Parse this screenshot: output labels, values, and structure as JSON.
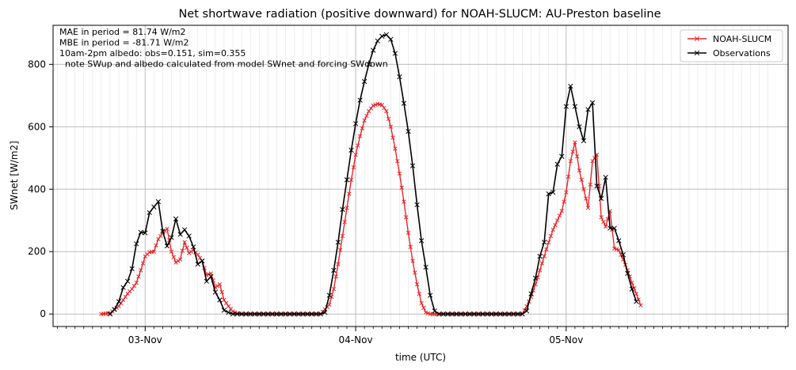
{
  "chart_data": {
    "type": "line",
    "title": "Net shortwave radiation (positive downward) for NOAH-SLUCM: AU-Preston baseline",
    "xlabel": "time (UTC)",
    "ylabel": "SWnet [W/m2]",
    "x_unit": "hours since 03-Nov 00:00 UTC",
    "xlim": [
      -10.5,
      73.3
    ],
    "ylim": [
      -40,
      925
    ],
    "yticks": [
      0,
      200,
      400,
      600,
      800
    ],
    "xtick_labels": [
      {
        "label": "03-Nov",
        "hour": 0
      },
      {
        "label": "04-Nov",
        "hour": 24
      },
      {
        "label": "05-Nov",
        "hour": 48
      }
    ],
    "grid": true,
    "legend_position": "top-right",
    "annotations": [
      "MAE in period = 81.74 W/m2",
      "MBE in period = -81.71 W/m2",
      "10am-2pm albedo: obs=0.151, sim=0.355",
      "  note SWup and albedo calculated from model SWnet and forcing SWdown"
    ],
    "series": [
      {
        "name": "NOAH-SLUCM",
        "color": "#e8262a",
        "marker": "x",
        "step_hours": 0.25,
        "points": [
          [
            -5.0,
            0
          ],
          [
            -4.0,
            3
          ],
          [
            -3.0,
            25
          ],
          [
            -2.5,
            45
          ],
          [
            -2.0,
            65
          ],
          [
            -1.5,
            80
          ],
          [
            -1.0,
            100
          ],
          [
            -0.5,
            140
          ],
          [
            0.0,
            185
          ],
          [
            0.5,
            198
          ],
          [
            1.0,
            200
          ],
          [
            1.5,
            240
          ],
          [
            2.0,
            260
          ],
          [
            2.5,
            273
          ],
          [
            3.0,
            200
          ],
          [
            3.5,
            165
          ],
          [
            4.0,
            175
          ],
          [
            4.5,
            230
          ],
          [
            5.0,
            195
          ],
          [
            5.5,
            205
          ],
          [
            6.0,
            190
          ],
          [
            6.5,
            170
          ],
          [
            7.0,
            125
          ],
          [
            7.5,
            130
          ],
          [
            8.0,
            85
          ],
          [
            8.5,
            95
          ],
          [
            9.0,
            45
          ],
          [
            9.5,
            25
          ],
          [
            10.0,
            8
          ],
          [
            10.5,
            2
          ],
          [
            11.0,
            0
          ],
          [
            20.0,
            0
          ],
          [
            21.0,
            30
          ],
          [
            21.5,
            80
          ],
          [
            22.0,
            160
          ],
          [
            22.5,
            250
          ],
          [
            23.0,
            340
          ],
          [
            23.5,
            430
          ],
          [
            24.0,
            510
          ],
          [
            24.5,
            570
          ],
          [
            25.0,
            620
          ],
          [
            25.5,
            650
          ],
          [
            26.0,
            668
          ],
          [
            26.5,
            673
          ],
          [
            27.0,
            670
          ],
          [
            27.5,
            650
          ],
          [
            28.0,
            600
          ],
          [
            28.5,
            530
          ],
          [
            29.0,
            450
          ],
          [
            29.5,
            360
          ],
          [
            30.0,
            260
          ],
          [
            30.5,
            170
          ],
          [
            31.0,
            95
          ],
          [
            31.5,
            35
          ],
          [
            32.0,
            5
          ],
          [
            32.5,
            0
          ],
          [
            43.0,
            0
          ],
          [
            43.5,
            25
          ],
          [
            44.0,
            55
          ],
          [
            44.5,
            95
          ],
          [
            45.0,
            140
          ],
          [
            45.5,
            185
          ],
          [
            46.0,
            230
          ],
          [
            46.5,
            270
          ],
          [
            47.0,
            300
          ],
          [
            47.5,
            330
          ],
          [
            48.0,
            390
          ],
          [
            48.5,
            490
          ],
          [
            49.0,
            550
          ],
          [
            49.5,
            460
          ],
          [
            50.0,
            400
          ],
          [
            50.5,
            340
          ],
          [
            51.0,
            490
          ],
          [
            51.5,
            510
          ],
          [
            52.0,
            310
          ],
          [
            52.5,
            280
          ],
          [
            53.0,
            330
          ],
          [
            53.5,
            210
          ],
          [
            54.0,
            205
          ],
          [
            54.5,
            175
          ],
          [
            55.0,
            140
          ],
          [
            55.5,
            100
          ],
          [
            56.0,
            65
          ],
          [
            56.5,
            28
          ]
        ]
      },
      {
        "name": "Observations",
        "color": "#000000",
        "marker": "x",
        "step_hours": 0.5,
        "points": [
          [
            -4.0,
            0
          ],
          [
            -3.5,
            15
          ],
          [
            -3.0,
            40
          ],
          [
            -2.5,
            85
          ],
          [
            -2.0,
            105
          ],
          [
            -1.5,
            145
          ],
          [
            -1.0,
            225
          ],
          [
            -0.5,
            262
          ],
          [
            0.0,
            260
          ],
          [
            0.5,
            325
          ],
          [
            1.0,
            343
          ],
          [
            1.5,
            360
          ],
          [
            2.0,
            265
          ],
          [
            2.5,
            218
          ],
          [
            3.0,
            245
          ],
          [
            3.5,
            305
          ],
          [
            4.0,
            255
          ],
          [
            4.5,
            270
          ],
          [
            5.0,
            250
          ],
          [
            5.5,
            215
          ],
          [
            6.0,
            160
          ],
          [
            6.5,
            170
          ],
          [
            7.0,
            105
          ],
          [
            7.5,
            120
          ],
          [
            8.0,
            70
          ],
          [
            8.5,
            45
          ],
          [
            9.0,
            12
          ],
          [
            9.5,
            5
          ],
          [
            10.0,
            0
          ],
          [
            20.0,
            0
          ],
          [
            20.5,
            5
          ],
          [
            21.0,
            60
          ],
          [
            21.5,
            140
          ],
          [
            22.0,
            230
          ],
          [
            22.5,
            335
          ],
          [
            23.0,
            430
          ],
          [
            23.5,
            525
          ],
          [
            24.0,
            610
          ],
          [
            24.5,
            685
          ],
          [
            25.0,
            745
          ],
          [
            25.5,
            800
          ],
          [
            26.0,
            845
          ],
          [
            26.5,
            875
          ],
          [
            27.0,
            890
          ],
          [
            27.5,
            895
          ],
          [
            28.0,
            880
          ],
          [
            28.5,
            835
          ],
          [
            29.0,
            760
          ],
          [
            29.5,
            675
          ],
          [
            30.0,
            585
          ],
          [
            30.5,
            475
          ],
          [
            31.0,
            350
          ],
          [
            31.5,
            235
          ],
          [
            32.0,
            150
          ],
          [
            32.5,
            60
          ],
          [
            33.0,
            10
          ],
          [
            33.5,
            0
          ],
          [
            43.0,
            0
          ],
          [
            43.5,
            10
          ],
          [
            44.0,
            65
          ],
          [
            44.5,
            115
          ],
          [
            45.0,
            185
          ],
          [
            45.5,
            230
          ],
          [
            46.0,
            385
          ],
          [
            46.5,
            390
          ],
          [
            47.0,
            480
          ],
          [
            47.5,
            505
          ],
          [
            48.0,
            665
          ],
          [
            48.5,
            730
          ],
          [
            49.0,
            665
          ],
          [
            49.5,
            600
          ],
          [
            50.0,
            555
          ],
          [
            50.5,
            655
          ],
          [
            51.0,
            677
          ],
          [
            51.5,
            410
          ],
          [
            52.0,
            370
          ],
          [
            52.5,
            438
          ],
          [
            53.0,
            275
          ],
          [
            53.5,
            275
          ],
          [
            54.0,
            235
          ],
          [
            54.5,
            190
          ],
          [
            55.0,
            130
          ],
          [
            55.5,
            80
          ],
          [
            56.0,
            40
          ]
        ]
      }
    ]
  }
}
